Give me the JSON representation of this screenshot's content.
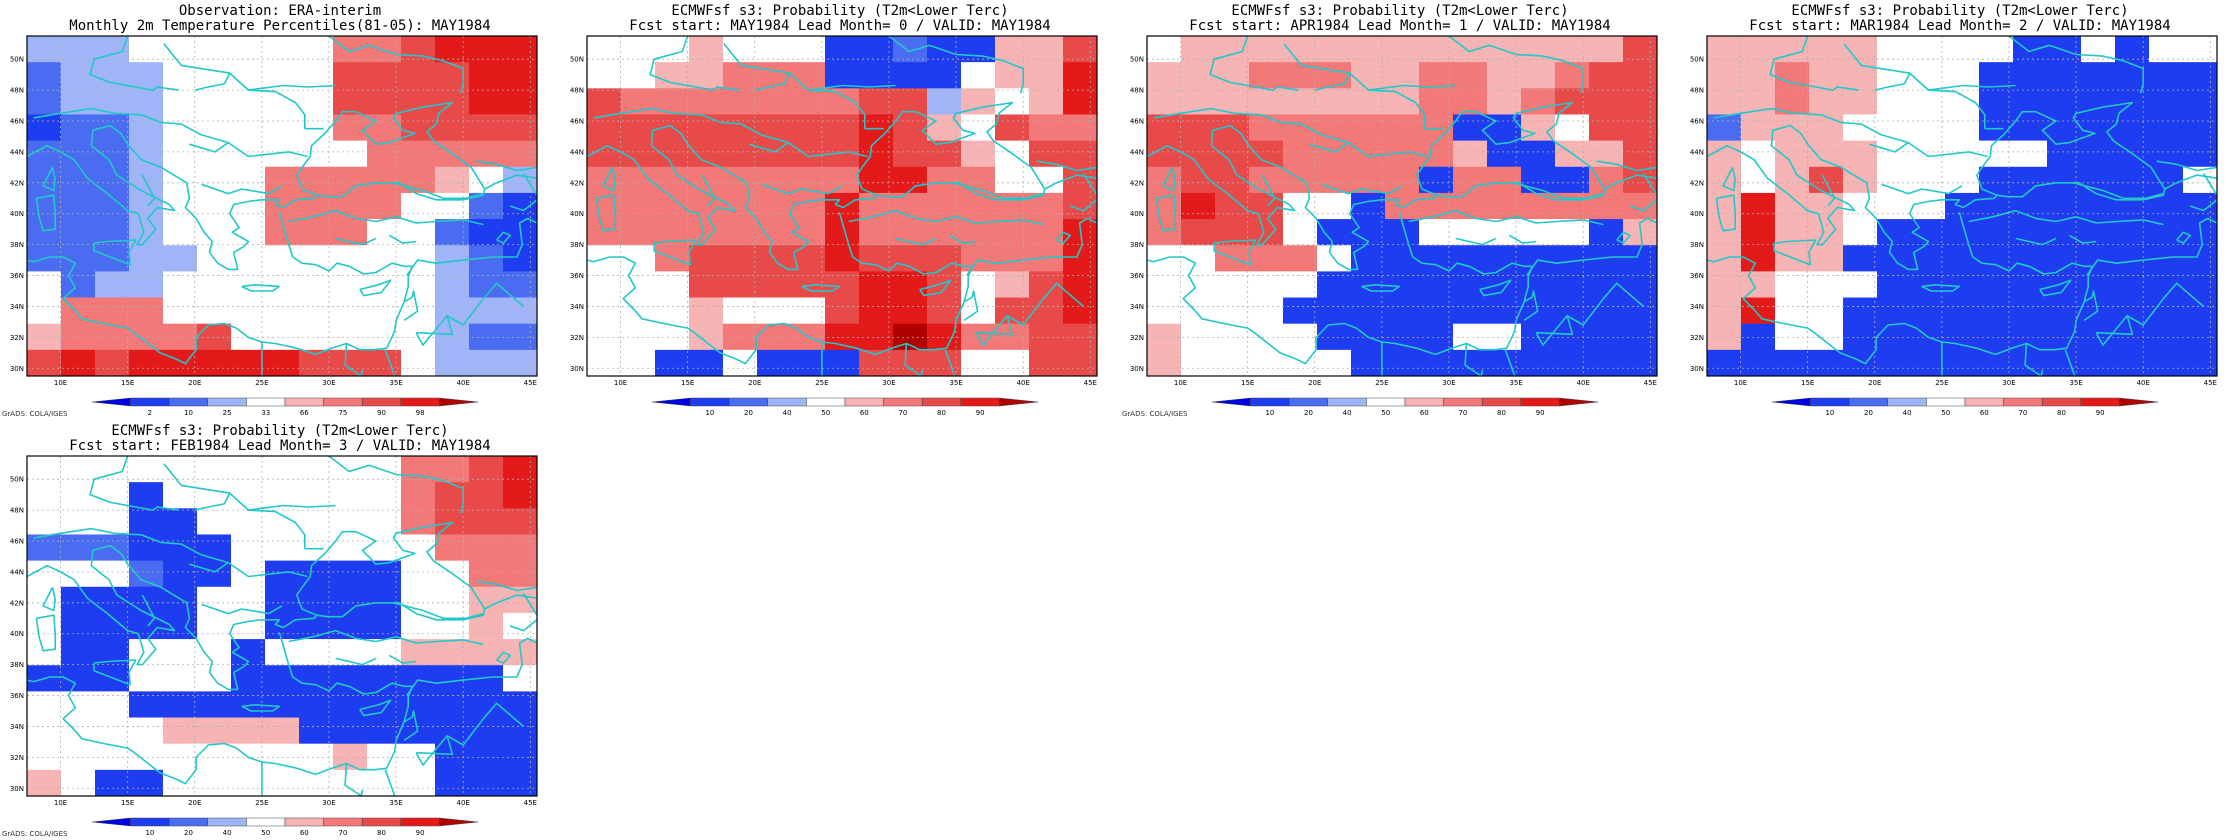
{
  "colors": {
    "coast": "#22c8c8",
    "grid": "#b0b0b0",
    "palette": [
      "#0000e6",
      "#1e3cf0",
      "#4a6cf0",
      "#a0b4f8",
      "#ffffff",
      "#f7b4b4",
      "#f37878",
      "#e84a4a",
      "#e41a1a",
      "#b00000"
    ]
  },
  "panels": [
    {
      "title1": "Observation: ERA-interim",
      "title2": "Monthly 2m Temperature Percentiles(81-05): MAY1984",
      "colorbar_labels": [
        "2",
        "10",
        "25",
        "33",
        "66",
        "75",
        "90",
        "98"
      ],
      "credit": "GrADS: COLA/IGES",
      "grid_data": [
        [
          "3",
          "3",
          "3",
          "4",
          "4",
          "4",
          "4",
          "4",
          "4",
          "6",
          "6",
          "7",
          "8",
          "8",
          "8"
        ],
        [
          "2",
          "3",
          "3",
          "3",
          "4",
          "4",
          "4",
          "4",
          "4",
          "7",
          "7",
          "7",
          "7",
          "8",
          "8"
        ],
        [
          "2",
          "3",
          "3",
          "3",
          "4",
          "4",
          "4",
          "4",
          "4",
          "7",
          "7",
          "7",
          "7",
          "8",
          "8"
        ],
        [
          "1",
          "2",
          "2",
          "3",
          "4",
          "4",
          "4",
          "4",
          "4",
          "6",
          "6",
          "7",
          "7",
          "7",
          "7"
        ],
        [
          "2",
          "2",
          "2",
          "3",
          "4",
          "4",
          "4",
          "4",
          "4",
          "4",
          "6",
          "6",
          "6",
          "6",
          "6"
        ],
        [
          "2",
          "2",
          "2",
          "3",
          "4",
          "4",
          "4",
          "6",
          "6",
          "6",
          "6",
          "6",
          "5",
          "4",
          "3"
        ],
        [
          "2",
          "2",
          "2",
          "3",
          "4",
          "4",
          "4",
          "6",
          "6",
          "6",
          "6",
          "4",
          "4",
          "2",
          "1"
        ],
        [
          "2",
          "2",
          "2",
          "3",
          "4",
          "4",
          "4",
          "6",
          "6",
          "6",
          "4",
          "4",
          "2",
          "1",
          "1"
        ],
        [
          "2",
          "2",
          "2",
          "3",
          "3",
          "4",
          "4",
          "4",
          "4",
          "4",
          "4",
          "4",
          "3",
          "2",
          "1"
        ],
        [
          "4",
          "2",
          "3",
          "3",
          "4",
          "4",
          "4",
          "4",
          "4",
          "4",
          "4",
          "4",
          "3",
          "2",
          "2"
        ],
        [
          "4",
          "6",
          "6",
          "6",
          "4",
          "4",
          "4",
          "4",
          "4",
          "4",
          "4",
          "4",
          "3",
          "3",
          "3"
        ],
        [
          "5",
          "6",
          "6",
          "6",
          "6",
          "7",
          "4",
          "4",
          "4",
          "4",
          "4",
          "4",
          "3",
          "2",
          "2"
        ],
        [
          "7",
          "8",
          "7",
          "8",
          "8",
          "8",
          "8",
          "8",
          "7",
          "7",
          "7",
          "4",
          "3",
          "3",
          "3"
        ]
      ]
    },
    {
      "title1": "ECMWFsf s3: Probability (T2m<Lower Terc)",
      "title2": "Fcst start: MAY1984  Lead Month= 0 / VALID: MAY1984",
      "colorbar_labels": [
        "10",
        "20",
        "40",
        "50",
        "60",
        "70",
        "80",
        "90"
      ],
      "credit": "",
      "grid_data": [
        [
          "4",
          "4",
          "4",
          "5",
          "4",
          "4",
          "4",
          "1",
          "1",
          "2",
          "1",
          "1",
          "5",
          "5",
          "7"
        ],
        [
          "4",
          "4",
          "5",
          "5",
          "6",
          "6",
          "6",
          "1",
          "1",
          "1",
          "1",
          "4",
          "5",
          "5",
          "8"
        ],
        [
          "7",
          "6",
          "6",
          "6",
          "6",
          "6",
          "6",
          "6",
          "7",
          "7",
          "3",
          "5",
          "4",
          "5",
          "8"
        ],
        [
          "7",
          "7",
          "7",
          "7",
          "7",
          "7",
          "7",
          "7",
          "8",
          "7",
          "5",
          "4",
          "7",
          "6",
          "6"
        ],
        [
          "7",
          "7",
          "7",
          "7",
          "7",
          "7",
          "7",
          "7",
          "8",
          "7",
          "7",
          "5",
          "4",
          "7",
          "7"
        ],
        [
          "6",
          "6",
          "6",
          "6",
          "6",
          "6",
          "6",
          "6",
          "8",
          "8",
          "6",
          "6",
          "4",
          "4",
          "7"
        ],
        [
          "6",
          "6",
          "6",
          "6",
          "6",
          "6",
          "6",
          "8",
          "6",
          "6",
          "6",
          "6",
          "6",
          "6",
          "7"
        ],
        [
          "6",
          "6",
          "6",
          "6",
          "6",
          "6",
          "6",
          "8",
          "6",
          "6",
          "6",
          "6",
          "6",
          "6",
          "8"
        ],
        [
          "4",
          "4",
          "6",
          "7",
          "7",
          "7",
          "7",
          "8",
          "7",
          "7",
          "7",
          "6",
          "6",
          "6",
          "8"
        ],
        [
          "4",
          "4",
          "4",
          "7",
          "7",
          "7",
          "7",
          "7",
          "8",
          "8",
          "7",
          "4",
          "5",
          "7",
          "8"
        ],
        [
          "4",
          "4",
          "4",
          "5",
          "4",
          "4",
          "4",
          "7",
          "8",
          "8",
          "7",
          "4",
          "7",
          "7",
          "8"
        ],
        [
          "4",
          "4",
          "4",
          "5",
          "6",
          "6",
          "6",
          "8",
          "8",
          "9",
          "8",
          "6",
          "6",
          "7",
          "7"
        ],
        [
          "4",
          "4",
          "1",
          "1",
          "4",
          "1",
          "1",
          "1",
          "7",
          "7",
          "7",
          "4",
          "4",
          "7",
          "7"
        ]
      ]
    },
    {
      "title1": "ECMWFsf s3: Probability (T2m<Lower Terc)",
      "title2": "Fcst start: APR1984  Lead Month= 1 / VALID: MAY1984",
      "colorbar_labels": [
        "10",
        "20",
        "40",
        "50",
        "60",
        "70",
        "80",
        "90"
      ],
      "credit": "GrADS: COLA/IGES",
      "grid_data": [
        [
          "4",
          "5",
          "5",
          "5",
          "5",
          "5",
          "5",
          "5",
          "5",
          "5",
          "5",
          "5",
          "5",
          "5",
          "7"
        ],
        [
          "5",
          "5",
          "5",
          "6",
          "6",
          "6",
          "5",
          "5",
          "6",
          "6",
          "5",
          "5",
          "6",
          "7",
          "7"
        ],
        [
          "5",
          "5",
          "5",
          "5",
          "5",
          "5",
          "5",
          "5",
          "6",
          "6",
          "5",
          "6",
          "7",
          "7",
          "7"
        ],
        [
          "7",
          "7",
          "7",
          "6",
          "6",
          "6",
          "6",
          "6",
          "6",
          "1",
          "1",
          "5",
          "4",
          "7",
          "7"
        ],
        [
          "7",
          "7",
          "7",
          "7",
          "6",
          "6",
          "6",
          "6",
          "6",
          "5",
          "1",
          "1",
          "5",
          "5",
          "7"
        ],
        [
          "6",
          "7",
          "7",
          "6",
          "6",
          "6",
          "6",
          "6",
          "1",
          "6",
          "6",
          "1",
          "1",
          "6",
          "7"
        ],
        [
          "6",
          "8",
          "7",
          "7",
          "4",
          "4",
          "1",
          "6",
          "6",
          "6",
          "6",
          "6",
          "6",
          "6",
          "6"
        ],
        [
          "6",
          "7",
          "7",
          "7",
          "4",
          "1",
          "1",
          "1",
          "4",
          "4",
          "4",
          "4",
          "4",
          "1",
          "5"
        ],
        [
          "4",
          "4",
          "6",
          "6",
          "6",
          "4",
          "1",
          "1",
          "1",
          "1",
          "1",
          "1",
          "1",
          "1",
          "1"
        ],
        [
          "4",
          "4",
          "4",
          "4",
          "4",
          "1",
          "1",
          "1",
          "1",
          "1",
          "1",
          "1",
          "1",
          "1",
          "1"
        ],
        [
          "4",
          "4",
          "4",
          "4",
          "1",
          "1",
          "1",
          "1",
          "1",
          "1",
          "1",
          "1",
          "1",
          "1",
          "1"
        ],
        [
          "5",
          "4",
          "4",
          "4",
          "4",
          "1",
          "1",
          "1",
          "1",
          "4",
          "4",
          "1",
          "1",
          "1",
          "1"
        ],
        [
          "5",
          "4",
          "4",
          "4",
          "4",
          "4",
          "1",
          "1",
          "1",
          "1",
          "1",
          "1",
          "1",
          "1",
          "1"
        ]
      ]
    },
    {
      "title1": "ECMWFsf s3: Probability (T2m<Lower Terc)",
      "title2": "Fcst start: MAR1984  Lead Month= 2 / VALID: MAY1984",
      "colorbar_labels": [
        "10",
        "20",
        "40",
        "50",
        "60",
        "70",
        "80",
        "90"
      ],
      "credit": "",
      "grid_data": [
        [
          "5",
          "5",
          "5",
          "5",
          "5",
          "4",
          "4",
          "4",
          "4",
          "1",
          "1",
          "4",
          "1",
          "4",
          "4"
        ],
        [
          "5",
          "5",
          "6",
          "5",
          "5",
          "4",
          "4",
          "4",
          "1",
          "1",
          "1",
          "1",
          "1",
          "1",
          "1"
        ],
        [
          "5",
          "5",
          "6",
          "5",
          "5",
          "4",
          "4",
          "4",
          "1",
          "1",
          "1",
          "1",
          "1",
          "1",
          "1"
        ],
        [
          "2",
          "5",
          "5",
          "5",
          "4",
          "4",
          "4",
          "4",
          "1",
          "1",
          "1",
          "1",
          "1",
          "1",
          "1"
        ],
        [
          "5",
          "4",
          "5",
          "5",
          "5",
          "4",
          "4",
          "4",
          "4",
          "4",
          "1",
          "1",
          "1",
          "1",
          "1"
        ],
        [
          "5",
          "4",
          "5",
          "7",
          "5",
          "4",
          "4",
          "4",
          "1",
          "1",
          "1",
          "1",
          "1",
          "1",
          "4"
        ],
        [
          "5",
          "8",
          "5",
          "5",
          "4",
          "4",
          "4",
          "1",
          "1",
          "1",
          "1",
          "1",
          "1",
          "1",
          "1"
        ],
        [
          "5",
          "8",
          "5",
          "5",
          "4",
          "1",
          "1",
          "1",
          "1",
          "1",
          "1",
          "1",
          "1",
          "1",
          "1"
        ],
        [
          "5",
          "8",
          "5",
          "5",
          "1",
          "1",
          "1",
          "1",
          "1",
          "1",
          "1",
          "1",
          "1",
          "1",
          "1"
        ],
        [
          "5",
          "5",
          "4",
          "4",
          "4",
          "1",
          "1",
          "1",
          "1",
          "1",
          "1",
          "1",
          "1",
          "1",
          "1"
        ],
        [
          "5",
          "8",
          "4",
          "4",
          "1",
          "1",
          "1",
          "1",
          "1",
          "1",
          "1",
          "1",
          "1",
          "1",
          "1"
        ],
        [
          "5",
          "1",
          "4",
          "4",
          "1",
          "1",
          "1",
          "1",
          "1",
          "1",
          "1",
          "1",
          "1",
          "1",
          "1"
        ],
        [
          "1",
          "1",
          "1",
          "1",
          "1",
          "1",
          "1",
          "1",
          "1",
          "1",
          "1",
          "1",
          "1",
          "1",
          "1"
        ]
      ]
    },
    {
      "title1": "ECMWFsf s3: Probability (T2m<Lower Terc)",
      "title2": "Fcst start: FEB1984  Lead Month= 3 / VALID: MAY1984",
      "colorbar_labels": [
        "10",
        "20",
        "40",
        "50",
        "60",
        "70",
        "80",
        "90"
      ],
      "credit": "GrADS: COLA/IGES",
      "grid_data": [
        [
          "4",
          "4",
          "4",
          "4",
          "4",
          "4",
          "4",
          "4",
          "4",
          "4",
          "4",
          "6",
          "6",
          "7",
          "8"
        ],
        [
          "4",
          "4",
          "4",
          "1",
          "4",
          "4",
          "4",
          "4",
          "4",
          "4",
          "4",
          "6",
          "7",
          "7",
          "8"
        ],
        [
          "4",
          "4",
          "4",
          "1",
          "1",
          "4",
          "4",
          "4",
          "4",
          "4",
          "4",
          "6",
          "7",
          "7",
          "7"
        ],
        [
          "2",
          "2",
          "2",
          "1",
          "1",
          "1",
          "4",
          "4",
          "4",
          "4",
          "4",
          "4",
          "6",
          "6",
          "6"
        ],
        [
          "4",
          "4",
          "4",
          "2",
          "1",
          "1",
          "4",
          "1",
          "1",
          "1",
          "1",
          "4",
          "4",
          "6",
          "6"
        ],
        [
          "4",
          "1",
          "1",
          "1",
          "1",
          "4",
          "4",
          "1",
          "1",
          "1",
          "1",
          "4",
          "4",
          "5",
          "5"
        ],
        [
          "4",
          "1",
          "1",
          "1",
          "1",
          "4",
          "4",
          "1",
          "1",
          "1",
          "1",
          "4",
          "4",
          "5",
          "4"
        ],
        [
          "4",
          "1",
          "1",
          "4",
          "4",
          "4",
          "1",
          "4",
          "4",
          "4",
          "4",
          "5",
          "5",
          "5",
          "5"
        ],
        [
          "1",
          "1",
          "1",
          "4",
          "4",
          "4",
          "1",
          "1",
          "1",
          "1",
          "1",
          "1",
          "1",
          "1",
          "4"
        ],
        [
          "4",
          "4",
          "4",
          "1",
          "1",
          "1",
          "1",
          "1",
          "1",
          "1",
          "1",
          "1",
          "1",
          "1",
          "1"
        ],
        [
          "4",
          "4",
          "4",
          "4",
          "5",
          "5",
          "5",
          "5",
          "1",
          "1",
          "1",
          "1",
          "1",
          "1",
          "1"
        ],
        [
          "4",
          "4",
          "4",
          "4",
          "4",
          "4",
          "4",
          "4",
          "4",
          "5",
          "4",
          "4",
          "1",
          "1",
          "1"
        ],
        [
          "5",
          "4",
          "1",
          "1",
          "4",
          "4",
          "4",
          "4",
          "4",
          "4",
          "4",
          "4",
          "1",
          "1",
          "1"
        ]
      ]
    }
  ]
}
